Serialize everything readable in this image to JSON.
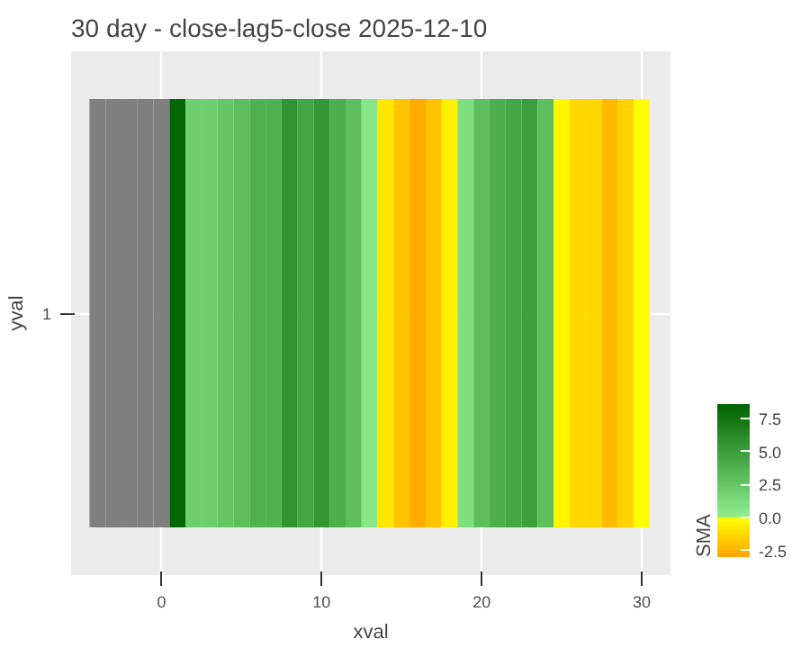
{
  "chart_data": {
    "type": "heatmap",
    "title": "30 day - close-lag5-close  2025-12-10",
    "xlabel": "xval",
    "ylabel": "yval",
    "clabel": "SMA",
    "x": [
      -4,
      -3,
      -2,
      -1,
      0,
      1,
      2,
      3,
      4,
      5,
      6,
      7,
      8,
      9,
      10,
      11,
      12,
      13,
      14,
      15,
      16,
      17,
      18,
      19,
      20,
      21,
      22,
      23,
      24,
      25,
      26,
      27,
      28,
      29,
      30
    ],
    "y_categories": [
      "1"
    ],
    "cells": [
      [
        null,
        null,
        null,
        null,
        null,
        8.5,
        2,
        2,
        2.5,
        3,
        3.8,
        3.8,
        5.7,
        4.5,
        5.5,
        4,
        3,
        0.5,
        -0.8,
        -2,
        -2.8,
        -2,
        -0.5,
        1,
        3,
        4,
        4.5,
        5,
        3,
        -0.3,
        -1.3,
        -1.3,
        -2.3,
        -1.5,
        -0.1
      ]
    ],
    "colors": [
      "#ffa500",
      "#ffff00",
      "#90ee90",
      "#006400"
    ],
    "clim": [
      -3,
      8.6
    ],
    "cticks": [
      {
        "value": -2.5,
        "label": "-2.5"
      },
      {
        "value": 0,
        "label": "0.0"
      },
      {
        "value": 2.5,
        "label": "2.5"
      },
      {
        "value": 5,
        "label": "5.0"
      },
      {
        "value": 7.5,
        "label": "7.5"
      }
    ],
    "xlim": [
      -5.65,
      31.8
    ],
    "xticks": [
      0,
      10,
      20,
      30
    ],
    "grid": true
  }
}
